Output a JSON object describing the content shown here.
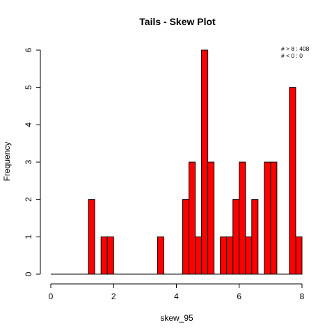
{
  "chart_data": {
    "type": "bar",
    "title": "Tails  - Skew Plot",
    "xlabel": "skew_95",
    "ylabel": "Frequency",
    "xlim": [
      0,
      8
    ],
    "ylim": [
      0,
      6
    ],
    "x_ticks": [
      "0",
      "2",
      "4",
      "6",
      "8"
    ],
    "y_ticks": [
      "0",
      "1",
      "2",
      "3",
      "4",
      "5",
      "6"
    ],
    "bin_width": 0.2,
    "bins": [
      {
        "x0": 1.2,
        "x1": 1.4,
        "count": 2
      },
      {
        "x0": 1.6,
        "x1": 1.8,
        "count": 1
      },
      {
        "x0": 1.8,
        "x1": 2.0,
        "count": 1
      },
      {
        "x0": 3.4,
        "x1": 3.6,
        "count": 1
      },
      {
        "x0": 4.2,
        "x1": 4.4,
        "count": 2
      },
      {
        "x0": 4.4,
        "x1": 4.6,
        "count": 3
      },
      {
        "x0": 4.6,
        "x1": 4.8,
        "count": 1
      },
      {
        "x0": 4.8,
        "x1": 5.0,
        "count": 6
      },
      {
        "x0": 5.0,
        "x1": 5.2,
        "count": 3
      },
      {
        "x0": 5.4,
        "x1": 5.6,
        "count": 1
      },
      {
        "x0": 5.6,
        "x1": 5.8,
        "count": 1
      },
      {
        "x0": 5.8,
        "x1": 6.0,
        "count": 2
      },
      {
        "x0": 6.0,
        "x1": 6.2,
        "count": 3
      },
      {
        "x0": 6.2,
        "x1": 6.4,
        "count": 1
      },
      {
        "x0": 6.4,
        "x1": 6.6,
        "count": 2
      },
      {
        "x0": 6.8,
        "x1": 7.0,
        "count": 3
      },
      {
        "x0": 7.0,
        "x1": 7.2,
        "count": 3
      },
      {
        "x0": 7.6,
        "x1": 7.8,
        "count": 5
      },
      {
        "x0": 7.8,
        "x1": 8.0,
        "count": 1
      }
    ],
    "baseline_x": [
      0,
      8
    ],
    "annotations": [
      "# > 8 : 408",
      "# < 0 : 0"
    ],
    "bar_color": "#ff0000",
    "border_color": "#000000",
    "grid": false,
    "legend": "none"
  }
}
